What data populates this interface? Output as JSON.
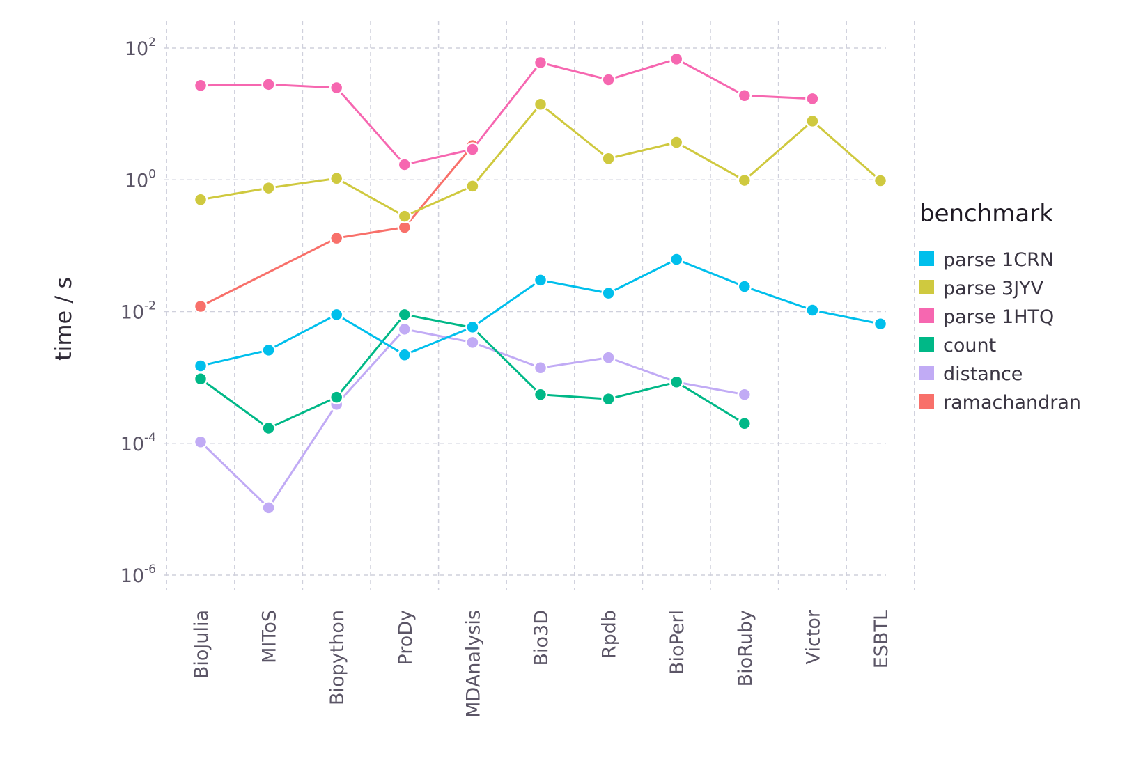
{
  "chart_data": {
    "type": "line",
    "yscale": "log10",
    "ylabel": "time / s",
    "ylim": [
      1e-06,
      100
    ],
    "yticks": [
      {
        "base": "10",
        "exp": "2",
        "value": 100
      },
      {
        "base": "10",
        "exp": "0",
        "value": 1
      },
      {
        "base": "10",
        "exp": "-2",
        "value": 0.01
      },
      {
        "base": "10",
        "exp": "-4",
        "value": 0.0001
      },
      {
        "base": "10",
        "exp": "-6",
        "value": 1e-06
      }
    ],
    "categories": [
      "BioJulia",
      "MIToS",
      "Biopython",
      "ProDy",
      "MDAnalysis",
      "Bio3D",
      "Rpdb",
      "BioPerl",
      "BioRuby",
      "Victor",
      "ESBTL"
    ],
    "grid": true,
    "legend": {
      "title": "benchmark",
      "position": "right"
    },
    "series": [
      {
        "name": "parse 1CRN",
        "color": "#00bfec",
        "values": [
          0.0015,
          0.0026,
          0.009,
          0.0022,
          0.0058,
          0.03,
          0.019,
          0.062,
          0.024,
          0.0105,
          0.0065
        ]
      },
      {
        "name": "parse 3JYV",
        "color": "#cfc93f",
        "values": [
          0.5,
          0.75,
          1.05,
          0.28,
          0.8,
          14.0,
          2.1,
          3.7,
          0.98,
          7.8,
          0.97
        ]
      },
      {
        "name": "parse 1HTQ",
        "color": "#f667b0",
        "values": [
          27.0,
          28.0,
          25.0,
          1.7,
          2.9,
          60.0,
          33.0,
          68.0,
          19.0,
          17.0,
          null
        ]
      },
      {
        "name": "count",
        "color": "#00b887",
        "values": [
          0.00095,
          0.00017,
          0.0005,
          0.009,
          0.0057,
          0.00055,
          0.00047,
          0.00085,
          0.0002,
          null,
          null
        ]
      },
      {
        "name": "distance",
        "color": "#c1abf5",
        "values": [
          0.000105,
          1.05e-05,
          0.00039,
          0.0054,
          0.0034,
          0.0014,
          0.002,
          0.00085,
          0.00055,
          null,
          null
        ]
      },
      {
        "name": "ramachandran",
        "color": "#f8706a",
        "values": [
          0.012,
          null,
          0.13,
          0.19,
          3.3,
          null,
          null,
          null,
          null,
          null,
          null
        ]
      }
    ]
  }
}
